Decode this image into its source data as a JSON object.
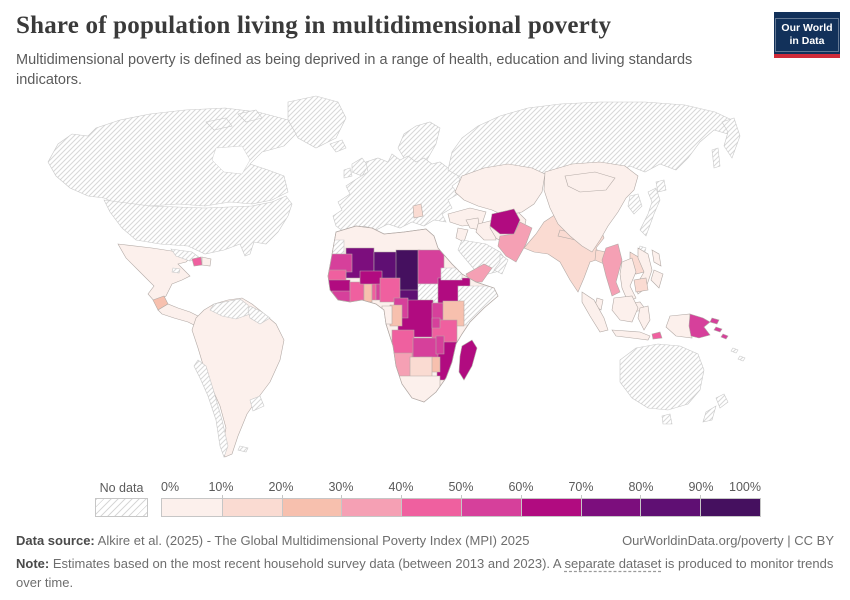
{
  "header": {
    "title": "Share of population living in multidimensional poverty",
    "subtitle": "Multidimensional poverty is defined as being deprived in a range of health, education and living standards indicators."
  },
  "logo": {
    "line1": "Our World",
    "line2": "in Data",
    "bg_color": "#12315a",
    "accent_color": "#d02a38"
  },
  "legend": {
    "no_data_label": "No data",
    "ticks": [
      "0%",
      "10%",
      "20%",
      "30%",
      "40%",
      "50%",
      "60%",
      "70%",
      "80%",
      "90%",
      "100%"
    ],
    "colors": [
      "#fcf0ec",
      "#fadbd2",
      "#f7c0ae",
      "#f5a0b4",
      "#ef609f",
      "#d6409b",
      "#b10b80",
      "#7c0e7d",
      "#5f0f73",
      "#45105f"
    ]
  },
  "map": {
    "regions": [
      {
        "id": "greenland",
        "name": "Greenland",
        "band": "no-data"
      },
      {
        "id": "canada",
        "name": "Canada",
        "band": "no-data"
      },
      {
        "id": "arctic-island-1",
        "name": "Arctic islands",
        "band": "no-data"
      },
      {
        "id": "arctic-island-2",
        "name": "Arctic islands",
        "band": "no-data"
      },
      {
        "id": "usa",
        "name": "United States",
        "band": "no-data"
      },
      {
        "id": "cuba",
        "name": "Cuba",
        "band": "no-data"
      },
      {
        "id": "jamaica",
        "name": "Jamaica",
        "band": "no-data"
      },
      {
        "id": "haiti",
        "name": "Haiti",
        "band": 5
      },
      {
        "id": "dominican-republic",
        "name": "Dominican Republic",
        "band": 1
      },
      {
        "id": "mexico",
        "name": "Mexico",
        "band": 1
      },
      {
        "id": "guatemala",
        "name": "Guatemala",
        "band": 3
      },
      {
        "id": "central-america",
        "name": "Central America",
        "band": 1
      },
      {
        "id": "south-america",
        "name": "South America",
        "band": 1
      },
      {
        "id": "venezuela",
        "name": "Venezuela",
        "band": "no-data"
      },
      {
        "id": "guyanas",
        "name": "Guyana and Suriname",
        "band": "no-data"
      },
      {
        "id": "chile",
        "name": "Chile",
        "band": "no-data"
      },
      {
        "id": "uruguay",
        "name": "Uruguay",
        "band": "no-data"
      },
      {
        "id": "falklands",
        "name": "Falkland Islands",
        "band": "no-data"
      },
      {
        "id": "iceland",
        "name": "Iceland",
        "band": "no-data"
      },
      {
        "id": "ireland",
        "name": "Ireland",
        "band": "no-data"
      },
      {
        "id": "uk",
        "name": "United Kingdom",
        "band": "no-data"
      },
      {
        "id": "europe",
        "name": "Europe",
        "band": "no-data"
      },
      {
        "id": "scandinavia",
        "name": "Scandinavia",
        "band": "no-data"
      },
      {
        "id": "balkans",
        "name": "Albania region",
        "band": 2
      },
      {
        "id": "russia",
        "name": "Russia",
        "band": "no-data"
      },
      {
        "id": "kamchatka",
        "name": "Kamchatka",
        "band": "no-data"
      },
      {
        "id": "sakhalin",
        "name": "Sakhalin",
        "band": "no-data"
      },
      {
        "id": "turkey",
        "name": "Turkey",
        "band": 1
      },
      {
        "id": "syria",
        "name": "Syria",
        "band": 1
      },
      {
        "id": "jordan-israel",
        "name": "Jordan and Israel",
        "band": 1
      },
      {
        "id": "caucasus",
        "name": "Caucasus",
        "band": 1
      },
      {
        "id": "iraq",
        "name": "Iraq",
        "band": 1
      },
      {
        "id": "iran",
        "name": "Iran",
        "band": 1
      },
      {
        "id": "saudi-arabia",
        "name": "Saudi Arabia",
        "band": "no-data"
      },
      {
        "id": "oman",
        "name": "Oman",
        "band": "no-data"
      },
      {
        "id": "yemen",
        "name": "Yemen",
        "band": 4
      },
      {
        "id": "central-asia",
        "name": "Central Asia",
        "band": 1
      },
      {
        "id": "afghanistan",
        "name": "Afghanistan",
        "band": 7
      },
      {
        "id": "pakistan",
        "name": "Pakistan",
        "band": 4
      },
      {
        "id": "india",
        "name": "India",
        "band": 2
      },
      {
        "id": "nepal",
        "name": "Nepal",
        "band": 2
      },
      {
        "id": "bangladesh",
        "name": "Bangladesh",
        "band": 2
      },
      {
        "id": "sri-lanka",
        "name": "Sri Lanka",
        "band": 1
      },
      {
        "id": "china",
        "name": "China",
        "band": 1
      },
      {
        "id": "mongolia",
        "name": "Mongolia",
        "band": 1
      },
      {
        "id": "korea",
        "name": "Korea",
        "band": "no-data"
      },
      {
        "id": "japan",
        "name": "Japan",
        "band": "no-data"
      },
      {
        "id": "japan-north",
        "name": "Hokkaido",
        "band": "no-data"
      },
      {
        "id": "taiwan",
        "name": "Taiwan",
        "band": "no-data"
      },
      {
        "id": "myanmar",
        "name": "Myanmar",
        "band": 4
      },
      {
        "id": "thailand",
        "name": "Thailand",
        "band": 1
      },
      {
        "id": "laos",
        "name": "Laos",
        "band": 2
      },
      {
        "id": "vietnam",
        "name": "Vietnam",
        "band": 1
      },
      {
        "id": "cambodia",
        "name": "Cambodia",
        "band": 2
      },
      {
        "id": "malaysia",
        "name": "Malaysia",
        "band": 1
      },
      {
        "id": "philippines-north",
        "name": "Philippines",
        "band": 1
      },
      {
        "id": "philippines-south",
        "name": "Philippines",
        "band": 1
      },
      {
        "id": "sumatra",
        "name": "Indonesia (Sumatra)",
        "band": 1
      },
      {
        "id": "borneo",
        "name": "Indonesia (Borneo)",
        "band": 1
      },
      {
        "id": "java",
        "name": "Indonesia (Java)",
        "band": 1
      },
      {
        "id": "sulawesi",
        "name": "Indonesia (Sulawesi)",
        "band": 1
      },
      {
        "id": "timor-leste",
        "name": "Timor-Leste",
        "band": 5
      },
      {
        "id": "papua-indonesia",
        "name": "Indonesia (Papua)",
        "band": 1
      },
      {
        "id": "png",
        "name": "Papua New Guinea",
        "band": 6
      },
      {
        "id": "new-britain",
        "name": "New Britain",
        "band": 6
      },
      {
        "id": "solomon-1",
        "name": "Solomon Islands",
        "band": 6
      },
      {
        "id": "solomon-2",
        "name": "Solomon Islands",
        "band": 6
      },
      {
        "id": "vanuatu",
        "name": "Vanuatu",
        "band": "no-data"
      },
      {
        "id": "fiji",
        "name": "Fiji",
        "band": "no-data"
      },
      {
        "id": "australia",
        "name": "Australia",
        "band": "no-data"
      },
      {
        "id": "tasmania",
        "name": "Tasmania",
        "band": "no-data"
      },
      {
        "id": "new-zealand-north",
        "name": "New Zealand",
        "band": "no-data"
      },
      {
        "id": "new-zealand-south",
        "name": "New Zealand",
        "band": "no-data"
      },
      {
        "id": "africa-base",
        "name": "North Africa",
        "band": 1
      },
      {
        "id": "western-sahara",
        "name": "Western Sahara",
        "band": "no-data"
      },
      {
        "id": "mali",
        "name": "Mali",
        "band": 8
      },
      {
        "id": "niger",
        "name": "Niger",
        "band": 9
      },
      {
        "id": "chad",
        "name": "Chad",
        "band": 10
      },
      {
        "id": "sudan",
        "name": "Sudan",
        "band": 6
      },
      {
        "id": "car",
        "name": "Central African Republic",
        "band": 9
      },
      {
        "id": "south-sudan",
        "name": "South Sudan",
        "band": "no-data"
      },
      {
        "id": "ethiopia",
        "name": "Ethiopia",
        "band": 7
      },
      {
        "id": "eritrea",
        "name": "Eritrea",
        "band": "no-data"
      },
      {
        "id": "somalia",
        "name": "Somalia",
        "band": "no-data"
      },
      {
        "id": "mauritania",
        "name": "Mauritania",
        "band": 6
      },
      {
        "id": "senegal",
        "name": "Senegal",
        "band": 5
      },
      {
        "id": "guinea",
        "name": "Guinea",
        "band": 7
      },
      {
        "id": "sierra-leone-liberia",
        "name": "Sierra Leone and Liberia",
        "band": 6
      },
      {
        "id": "cote-divoire",
        "name": "Cote d'Ivoire",
        "band": 5
      },
      {
        "id": "ghana",
        "name": "Ghana",
        "band": 3
      },
      {
        "id": "togo",
        "name": "Togo",
        "band": 5
      },
      {
        "id": "benin",
        "name": "Benin",
        "band": 6
      },
      {
        "id": "burkina-faso",
        "name": "Burkina Faso",
        "band": 7
      },
      {
        "id": "nigeria",
        "name": "Nigeria",
        "band": 5
      },
      {
        "id": "drc",
        "name": "Democratic Republic of Congo",
        "band": 7
      },
      {
        "id": "cameroon",
        "name": "Cameroon",
        "band": 6
      },
      {
        "id": "congo",
        "name": "Congo",
        "band": 3
      },
      {
        "id": "gabon",
        "name": "Gabon",
        "band": 1
      },
      {
        "id": "uganda",
        "name": "Uganda",
        "band": 6
      },
      {
        "id": "kenya",
        "name": "Kenya",
        "band": 3
      },
      {
        "id": "tanzania",
        "name": "Tanzania",
        "band": 5
      },
      {
        "id": "rwanda-burundi",
        "name": "Rwanda and Burundi",
        "band": 6
      },
      {
        "id": "angola",
        "name": "Angola",
        "band": 5
      },
      {
        "id": "mozambique",
        "name": "Mozambique",
        "band": 7
      },
      {
        "id": "zambia",
        "name": "Zambia",
        "band": 6
      },
      {
        "id": "malawi",
        "name": "Malawi",
        "band": 6
      },
      {
        "id": "zimbabwe",
        "name": "Zimbabwe",
        "band": 3
      },
      {
        "id": "namibia",
        "name": "Namibia",
        "band": 4
      },
      {
        "id": "botswana",
        "name": "Botswana",
        "band": 2
      },
      {
        "id": "south-africa",
        "name": "South Africa",
        "band": 1
      },
      {
        "id": "madagascar",
        "name": "Madagascar",
        "band": 7
      }
    ]
  },
  "footer": {
    "datasource_label": "Data source:",
    "datasource_text": " Alkire et al. (2025) - The Global Multidimensional Poverty Index (MPI) 2025",
    "rights": "OurWorldinData.org/poverty | CC BY",
    "note_label": "Note:",
    "note_before": " Estimates based on the most recent household survey data (between 2013 and 2023). A ",
    "note_link": "separate dataset",
    "note_after": " is produced to monitor trends over time."
  }
}
